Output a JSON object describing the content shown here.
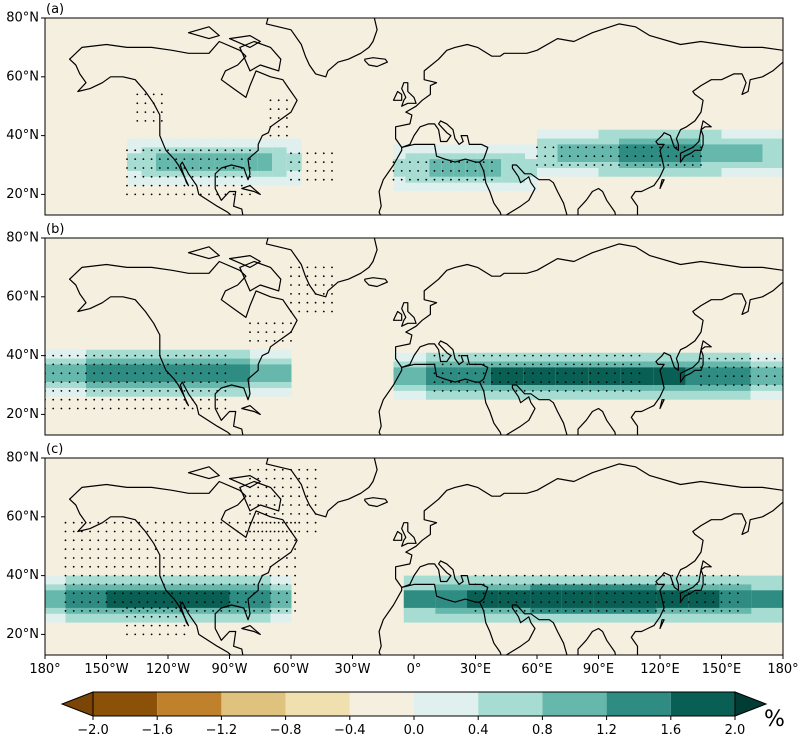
{
  "chart_data": {
    "type": "heatmap",
    "projection": "equirectangular",
    "lon_range": [
      -180,
      180
    ],
    "lat_range": [
      13,
      80
    ],
    "stippling": true,
    "panels": [
      {
        "label": "(a)",
        "bands": [
          {
            "lon_start": -140,
            "lon_end": -55,
            "lat": 31,
            "peak": 1.0
          },
          {
            "lon_start": -10,
            "lon_end": 60,
            "lat": 29,
            "peak": 0.9
          },
          {
            "lon_start": 60,
            "lon_end": 180,
            "lat": 34,
            "peak": 1.3
          }
        ]
      },
      {
        "label": "(b)",
        "bands": [
          {
            "lon_start": -180,
            "lon_end": -60,
            "lat": 34,
            "peak": 1.5
          },
          {
            "lon_start": -10,
            "lon_end": 180,
            "lat": 33,
            "peak": 1.8
          }
        ]
      },
      {
        "label": "(c)",
        "bands": [
          {
            "lon_start": -180,
            "lon_end": -60,
            "lat": 32,
            "peak": 1.8
          },
          {
            "lon_start": -5,
            "lon_end": 180,
            "lat": 32,
            "peak": 2.0
          }
        ]
      }
    ],
    "y_ticks": [
      "80°N",
      "60°N",
      "40°N",
      "20°N"
    ],
    "y_tick_values": [
      80,
      60,
      40,
      20
    ],
    "x_ticks": [
      "180°",
      "150°W",
      "120°W",
      "90°W",
      "60°W",
      "30°W",
      "0°",
      "30°E",
      "60°E",
      "90°E",
      "120°E",
      "150°E",
      "180°"
    ],
    "x_tick_values": [
      -180,
      -150,
      -120,
      -90,
      -60,
      -30,
      0,
      30,
      60,
      90,
      120,
      150,
      180
    ],
    "colorbar": {
      "ticks": [
        "−2.0",
        "−1.6",
        "−1.2",
        "−0.8",
        "−0.4",
        "0.0",
        "0.4",
        "0.8",
        "1.2",
        "1.6",
        "2.0"
      ],
      "levels": [
        -2.0,
        -1.6,
        -1.2,
        -0.8,
        -0.4,
        0.0,
        0.4,
        0.8,
        1.2,
        1.6,
        2.0
      ],
      "colors": [
        "#8c5109",
        "#bf812c",
        "#dfc27d",
        "#f0e0b0",
        "#f5efdf",
        "#dff0ee",
        "#a7dcd2",
        "#67b8ac",
        "#2e8c82",
        "#0a5f54"
      ],
      "under_color": "#7a4507",
      "over_color": "#013d35",
      "unit": "%"
    }
  }
}
